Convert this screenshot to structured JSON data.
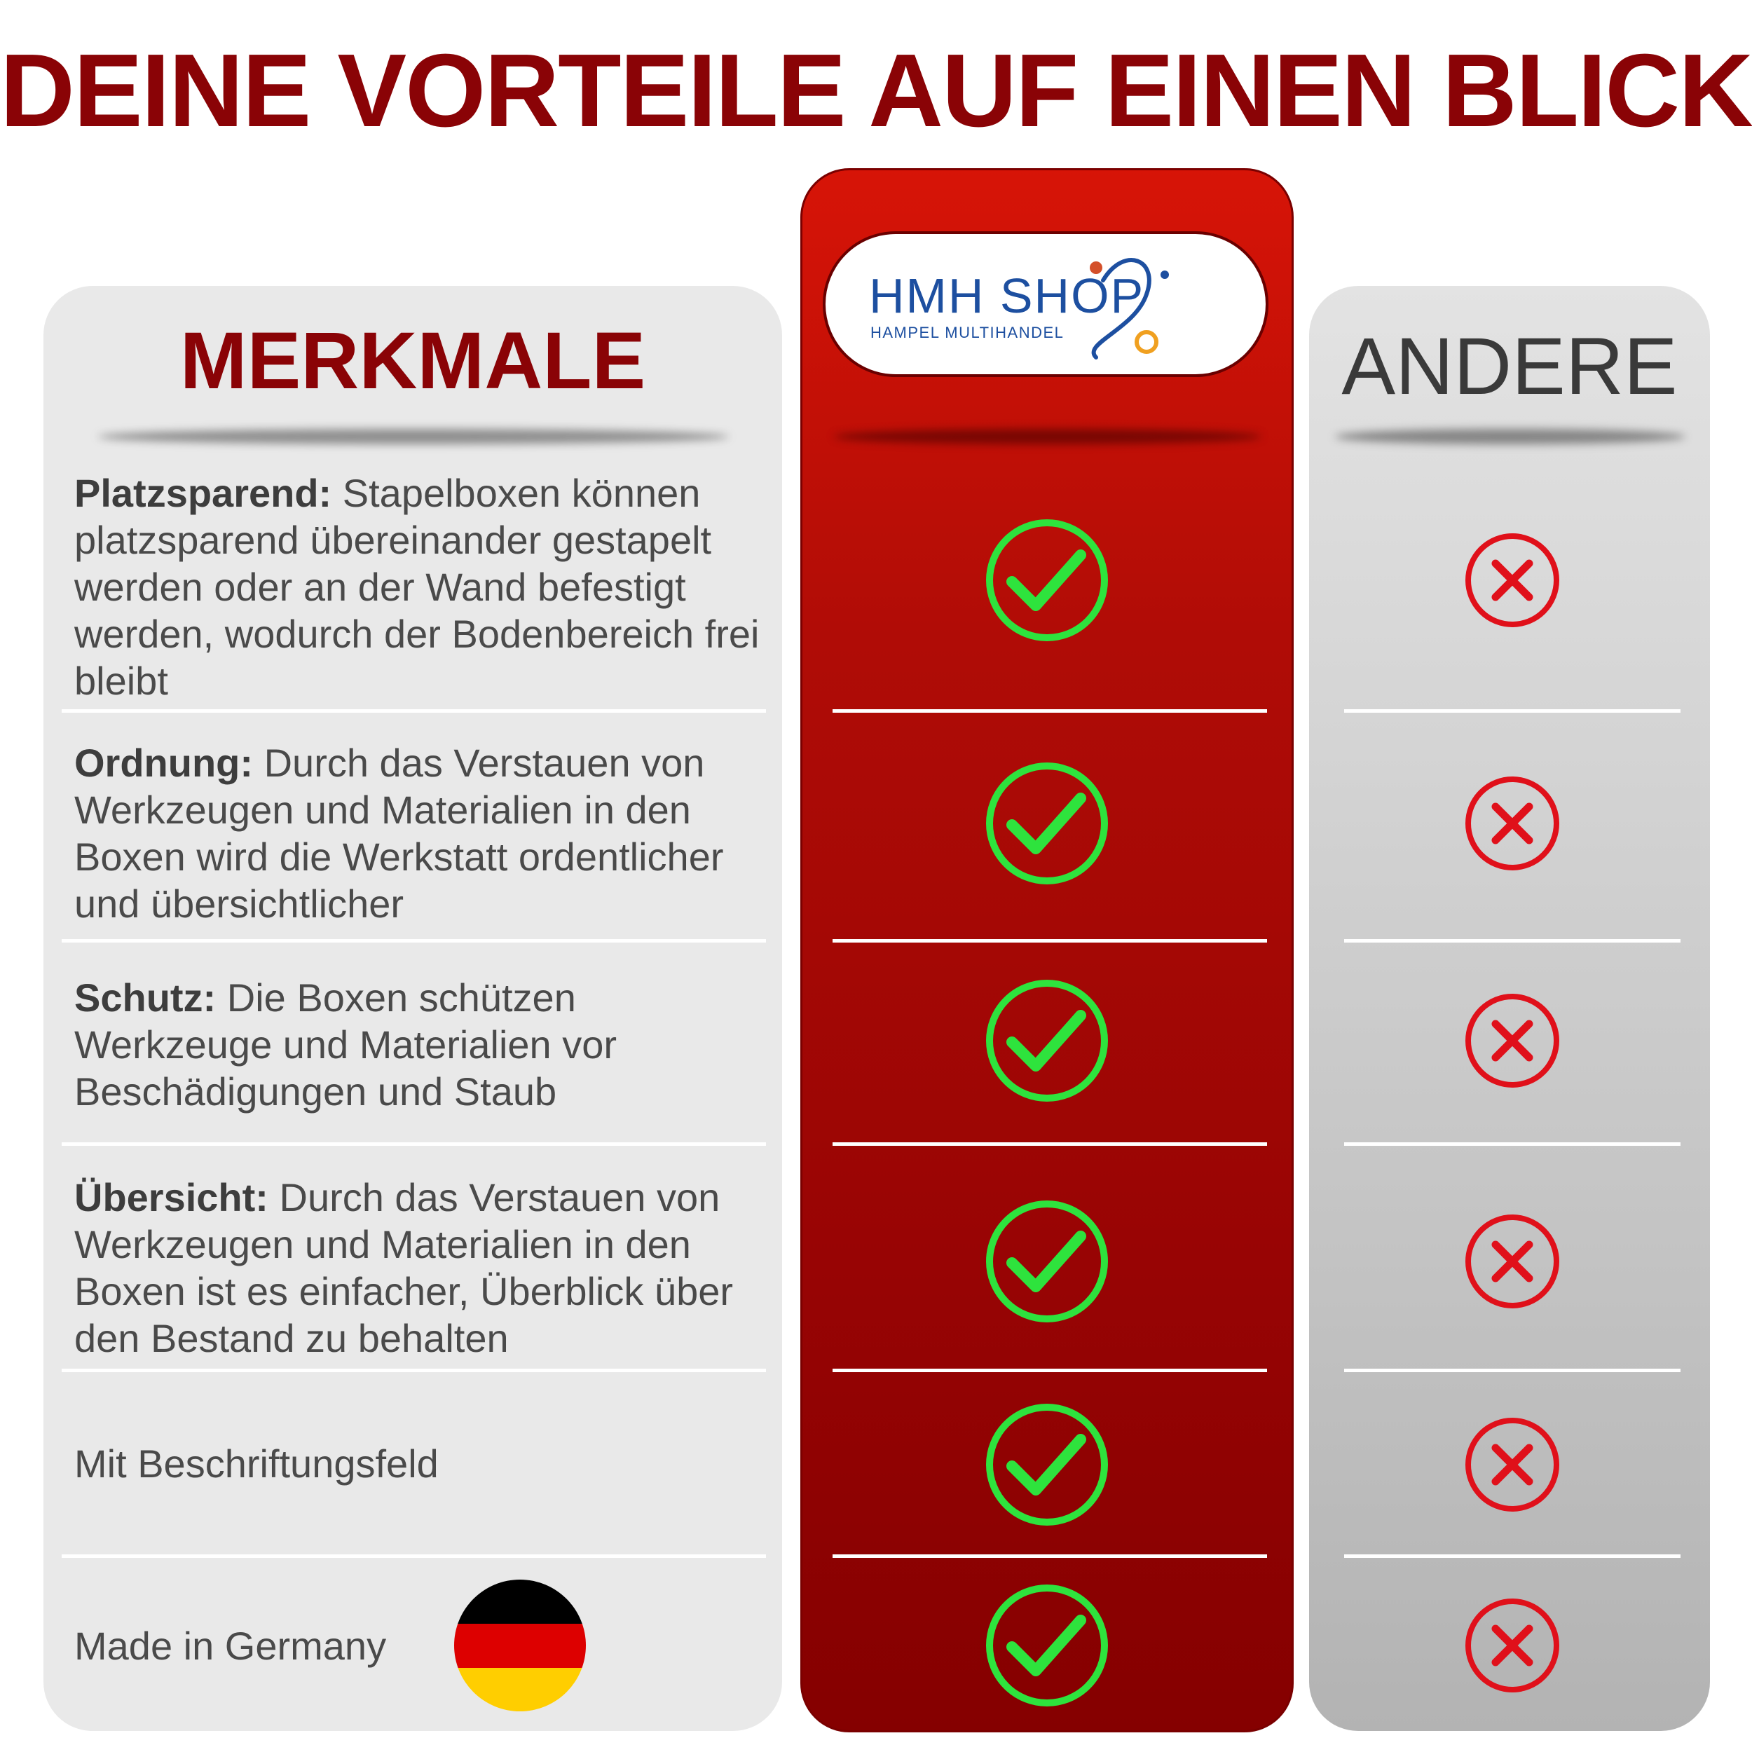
{
  "headline": "DEINE VORTEILE AUF EINEN BLICK",
  "colors": {
    "headline": "#8a0306",
    "merkmale_title": "#8a0306",
    "check": "#2ee33d",
    "cross": "#e0101a",
    "andere_title": "#3a3a3a",
    "logo_blue": "#1d4fa0",
    "logo_orange": "#f0a020"
  },
  "columns": {
    "features_title": "MERKMALE",
    "others_title": "ANDERE"
  },
  "logo": {
    "brand": "HMH SHOP",
    "tagline": "HAMPEL MULTIHANDEL"
  },
  "features": [
    {
      "label": "Platzsparend:",
      "text": " Stapelboxen können platzsparend übereinander gestapelt werden oder an der Wand befestigt werden, wodurch der Bodenbereich frei bleibt",
      "ours": "check-icon",
      "others": "cross-icon"
    },
    {
      "label": "Ordnung:",
      "text": " Durch das Verstauen von Werkzeugen und Materialien in den Boxen wird die Werkstatt ordentlicher und übersichtlicher",
      "ours": "check-icon",
      "others": "cross-icon"
    },
    {
      "label": "Schutz:",
      "text": " Die Boxen schützen Werkzeuge und Materialien vor Beschädigungen und Staub",
      "ours": "check-icon",
      "others": "cross-icon"
    },
    {
      "label": "Übersicht:",
      "text": " Durch das Verstauen von Werkzeugen und Materialien in den Boxen ist es einfacher, Überblick über den Bestand zu behalten",
      "ours": "check-icon",
      "others": "cross-icon"
    },
    {
      "label": "",
      "text": "Mit Beschriftungsfeld",
      "ours": "check-icon",
      "others": "cross-icon"
    },
    {
      "label": "",
      "text": "Made in Germany",
      "ours": "check-icon",
      "others": "cross-icon",
      "icon": "german-flag-icon"
    }
  ]
}
